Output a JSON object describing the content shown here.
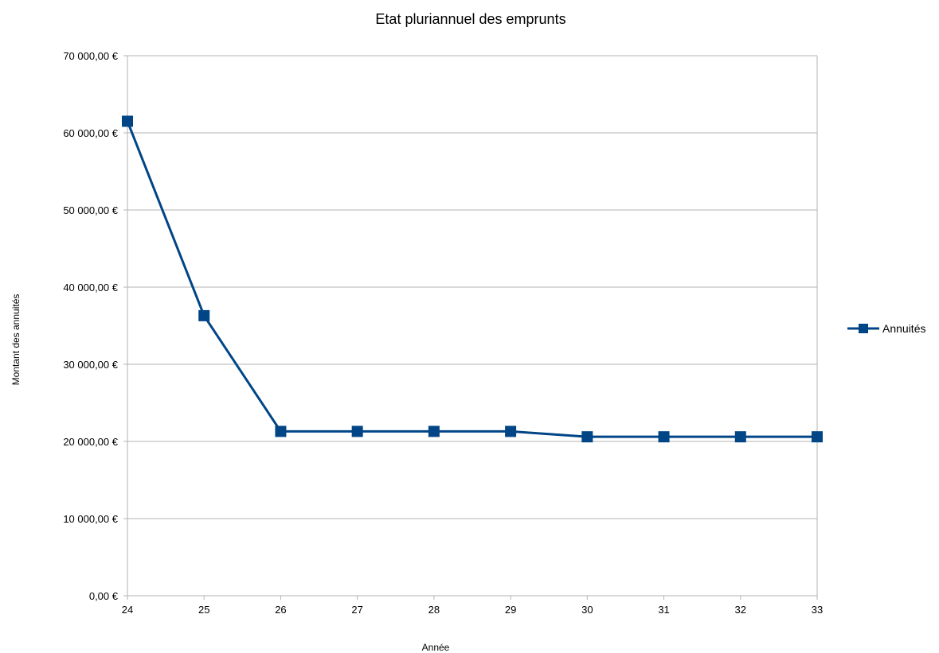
{
  "chart_data": {
    "type": "line",
    "title": "Etat pluriannuel des emprunts",
    "xlabel": "Année",
    "ylabel": "Montant des annuités",
    "categories": [
      "24",
      "25",
      "26",
      "27",
      "28",
      "29",
      "30",
      "31",
      "32",
      "33"
    ],
    "y_ticks": [
      "0,00 €",
      "10 000,00 €",
      "20 000,00 €",
      "30 000,00 €",
      "40 000,00 €",
      "50 000,00 €",
      "60 000,00 €",
      "70 000,00 €"
    ],
    "ylim": [
      0,
      70000
    ],
    "y_step": 10000,
    "grid": true,
    "legend_position": "right",
    "series": [
      {
        "name": "Annuités",
        "color": "#004586",
        "marker": "square",
        "values": [
          61500,
          36300,
          21300,
          21300,
          21300,
          21300,
          20600,
          20600,
          20600,
          20600
        ]
      }
    ]
  }
}
